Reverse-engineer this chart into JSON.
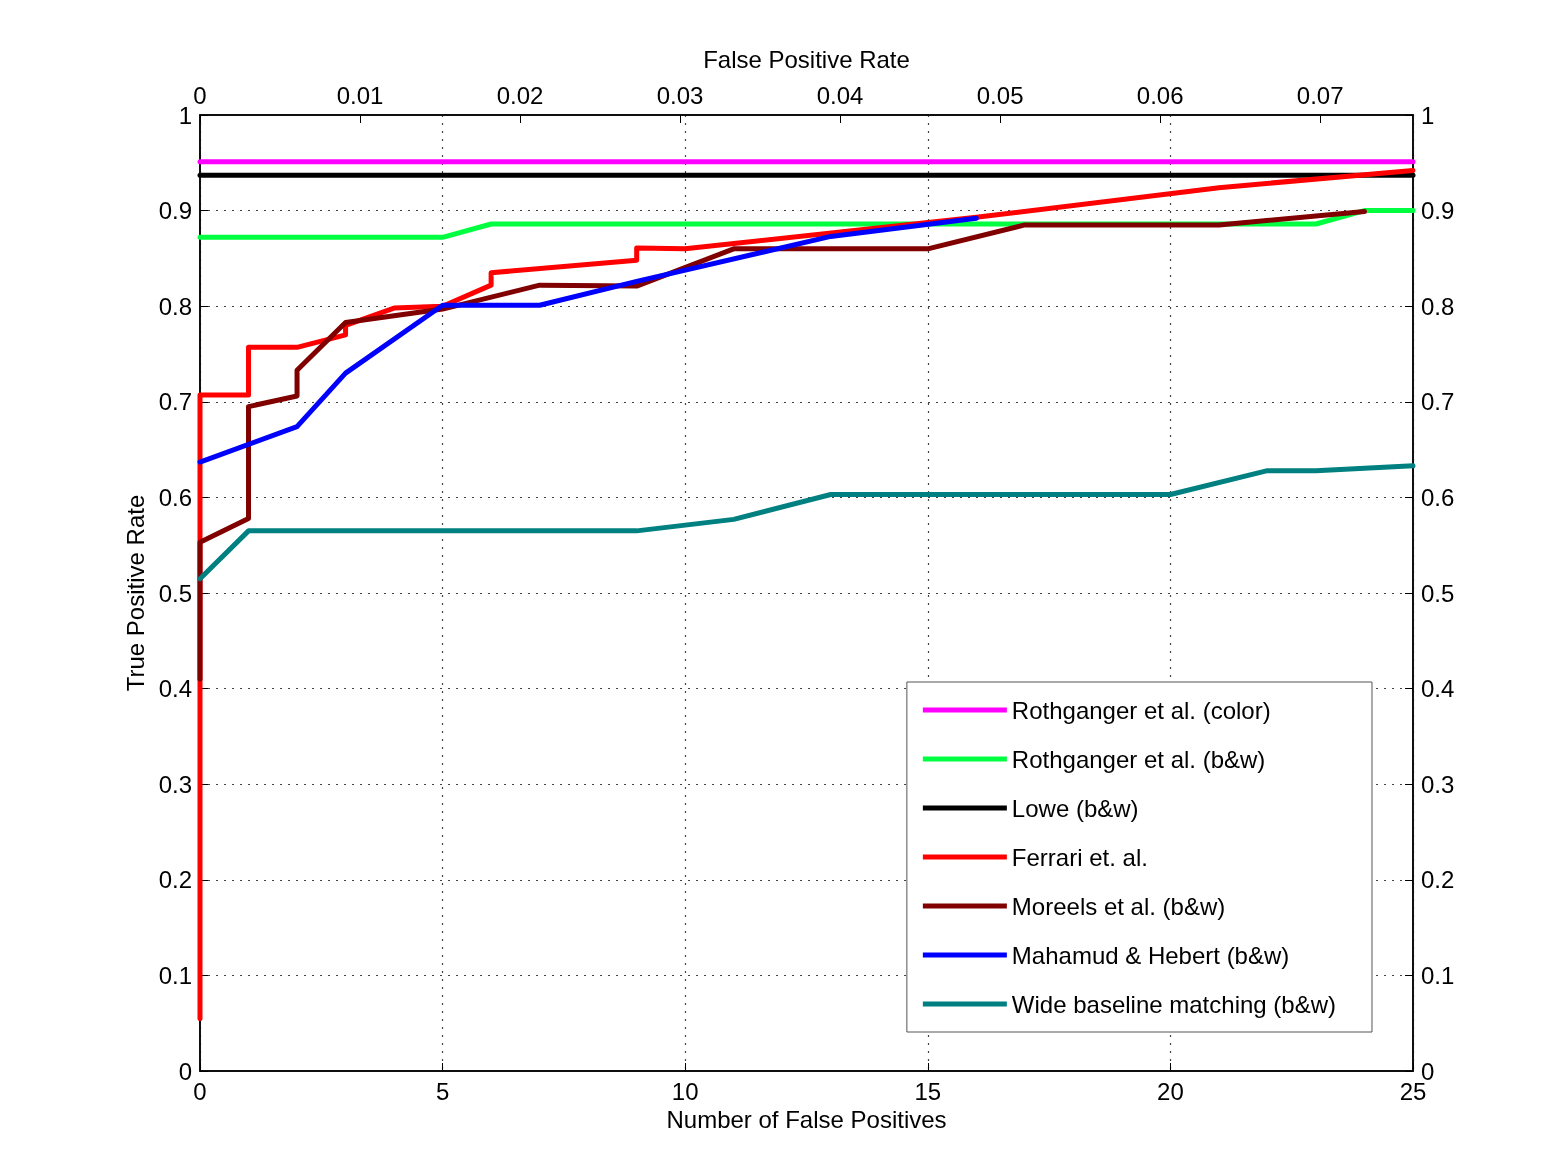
{
  "chart_data": {
    "type": "line",
    "xlabel": "Number of False Positives",
    "ylabel": "True Positive Rate",
    "x2label": "False Positive Rate",
    "xlim": [
      0,
      25
    ],
    "xticks": [
      0,
      5,
      10,
      15,
      20,
      25
    ],
    "x2lim": [
      0,
      0.0758
    ],
    "x2ticks": [
      0,
      0.01,
      0.02,
      0.03,
      0.04,
      0.05,
      0.06,
      0.07
    ],
    "ylim": [
      0,
      1
    ],
    "yticks": [
      0,
      0.1,
      0.2,
      0.3,
      0.4,
      0.5,
      0.6,
      0.7,
      0.8,
      0.9,
      1
    ],
    "y2lim": [
      0,
      1
    ],
    "y2ticks": [
      0,
      0.1,
      0.2,
      0.3,
      0.4,
      0.5,
      0.6,
      0.7,
      0.8,
      0.9,
      1
    ],
    "grid": true,
    "legend": "bottom right",
    "series": [
      {
        "name": "Rothganger et al. (color)",
        "color": "#ff00ff",
        "x": [
          0,
          25
        ],
        "values": [
          0.951,
          0.951
        ]
      },
      {
        "name": "Rothganger et al. (b&w)",
        "color": "#00ff40",
        "x": [
          0,
          5,
          6,
          22,
          23,
          24,
          25
        ],
        "values": [
          0.872,
          0.872,
          0.886,
          0.886,
          0.886,
          0.9,
          0.9
        ]
      },
      {
        "name": "Lowe (b&w)",
        "color": "#000000",
        "x": [
          0,
          25
        ],
        "values": [
          0.937,
          0.937
        ]
      },
      {
        "name": "Ferrari et. al.",
        "color": "#ff0000",
        "x": [
          0,
          0,
          1,
          1,
          2,
          3,
          3,
          4,
          5,
          6,
          6,
          9,
          9,
          10,
          16,
          21,
          25
        ],
        "values": [
          0.055,
          0.707,
          0.707,
          0.757,
          0.757,
          0.77,
          0.78,
          0.798,
          0.8,
          0.822,
          0.835,
          0.848,
          0.861,
          0.86,
          0.893,
          0.924,
          0.942
        ]
      },
      {
        "name": "Moreels et al. (b&w)",
        "color": "#800000",
        "x": [
          0,
          0,
          1,
          1,
          2,
          2,
          3,
          5,
          7,
          9,
          11,
          15,
          17,
          21,
          24
        ],
        "values": [
          0.41,
          0.553,
          0.578,
          0.695,
          0.706,
          0.733,
          0.783,
          0.797,
          0.822,
          0.821,
          0.86,
          0.86,
          0.885,
          0.885,
          0.899
        ]
      },
      {
        "name": "Mahamud & Hebert (b&w)",
        "color": "#0000ff",
        "x": [
          0,
          2,
          3,
          5,
          7,
          9,
          13,
          16
        ],
        "values": [
          0.637,
          0.674,
          0.73,
          0.801,
          0.801,
          0.826,
          0.873,
          0.892
        ]
      },
      {
        "name": "Wide baseline matching (b&w)",
        "color": "#008080",
        "x": [
          0,
          1,
          9,
          11,
          13,
          20,
          22,
          23,
          25
        ],
        "values": [
          0.515,
          0.565,
          0.565,
          0.577,
          0.603,
          0.603,
          0.628,
          0.628,
          0.633
        ]
      }
    ]
  }
}
